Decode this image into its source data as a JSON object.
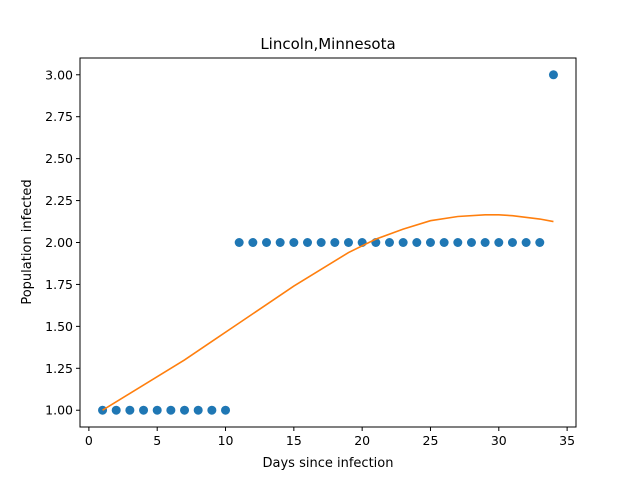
{
  "chart_data": {
    "type": "scatter",
    "title": "Lincoln,Minnesota",
    "xlabel": "Days since infection",
    "ylabel": "Population infected",
    "xlim": [
      -0.65,
      35.65
    ],
    "ylim": [
      0.9,
      3.1
    ],
    "x_ticks": [
      0,
      5,
      10,
      15,
      20,
      25,
      30,
      35
    ],
    "x_tick_labels": [
      "0",
      "5",
      "10",
      "15",
      "20",
      "25",
      "30",
      "35"
    ],
    "y_ticks": [
      1.0,
      1.25,
      1.5,
      1.75,
      2.0,
      2.25,
      2.5,
      2.75,
      3.0
    ],
    "y_tick_labels": [
      "1.00",
      "1.25",
      "1.50",
      "1.75",
      "2.00",
      "2.25",
      "2.50",
      "2.75",
      "3.00"
    ],
    "grid": false,
    "legend": "none",
    "series": [
      {
        "type": "scatter",
        "color": "#1f77b4",
        "x": [
          1,
          2,
          3,
          4,
          5,
          6,
          7,
          8,
          9,
          10,
          11,
          12,
          13,
          14,
          15,
          16,
          17,
          18,
          19,
          20,
          21,
          22,
          23,
          24,
          25,
          26,
          27,
          28,
          29,
          30,
          31,
          32,
          33,
          34
        ],
        "y": [
          1,
          1,
          1,
          1,
          1,
          1,
          1,
          1,
          1,
          1,
          2,
          2,
          2,
          2,
          2,
          2,
          2,
          2,
          2,
          2,
          2,
          2,
          2,
          2,
          2,
          2,
          2,
          2,
          2,
          2,
          2,
          2,
          2,
          3
        ]
      },
      {
        "type": "line",
        "color": "#ff7f0e",
        "x": [
          1,
          3,
          5,
          7,
          9,
          11,
          13,
          15,
          17,
          19,
          21,
          23,
          25,
          27,
          29,
          30,
          31,
          33,
          34
        ],
        "y": [
          1.0,
          1.1,
          1.2,
          1.3,
          1.41,
          1.52,
          1.63,
          1.74,
          1.84,
          1.94,
          2.02,
          2.08,
          2.13,
          2.155,
          2.165,
          2.165,
          2.16,
          2.14,
          2.125
        ]
      }
    ]
  }
}
